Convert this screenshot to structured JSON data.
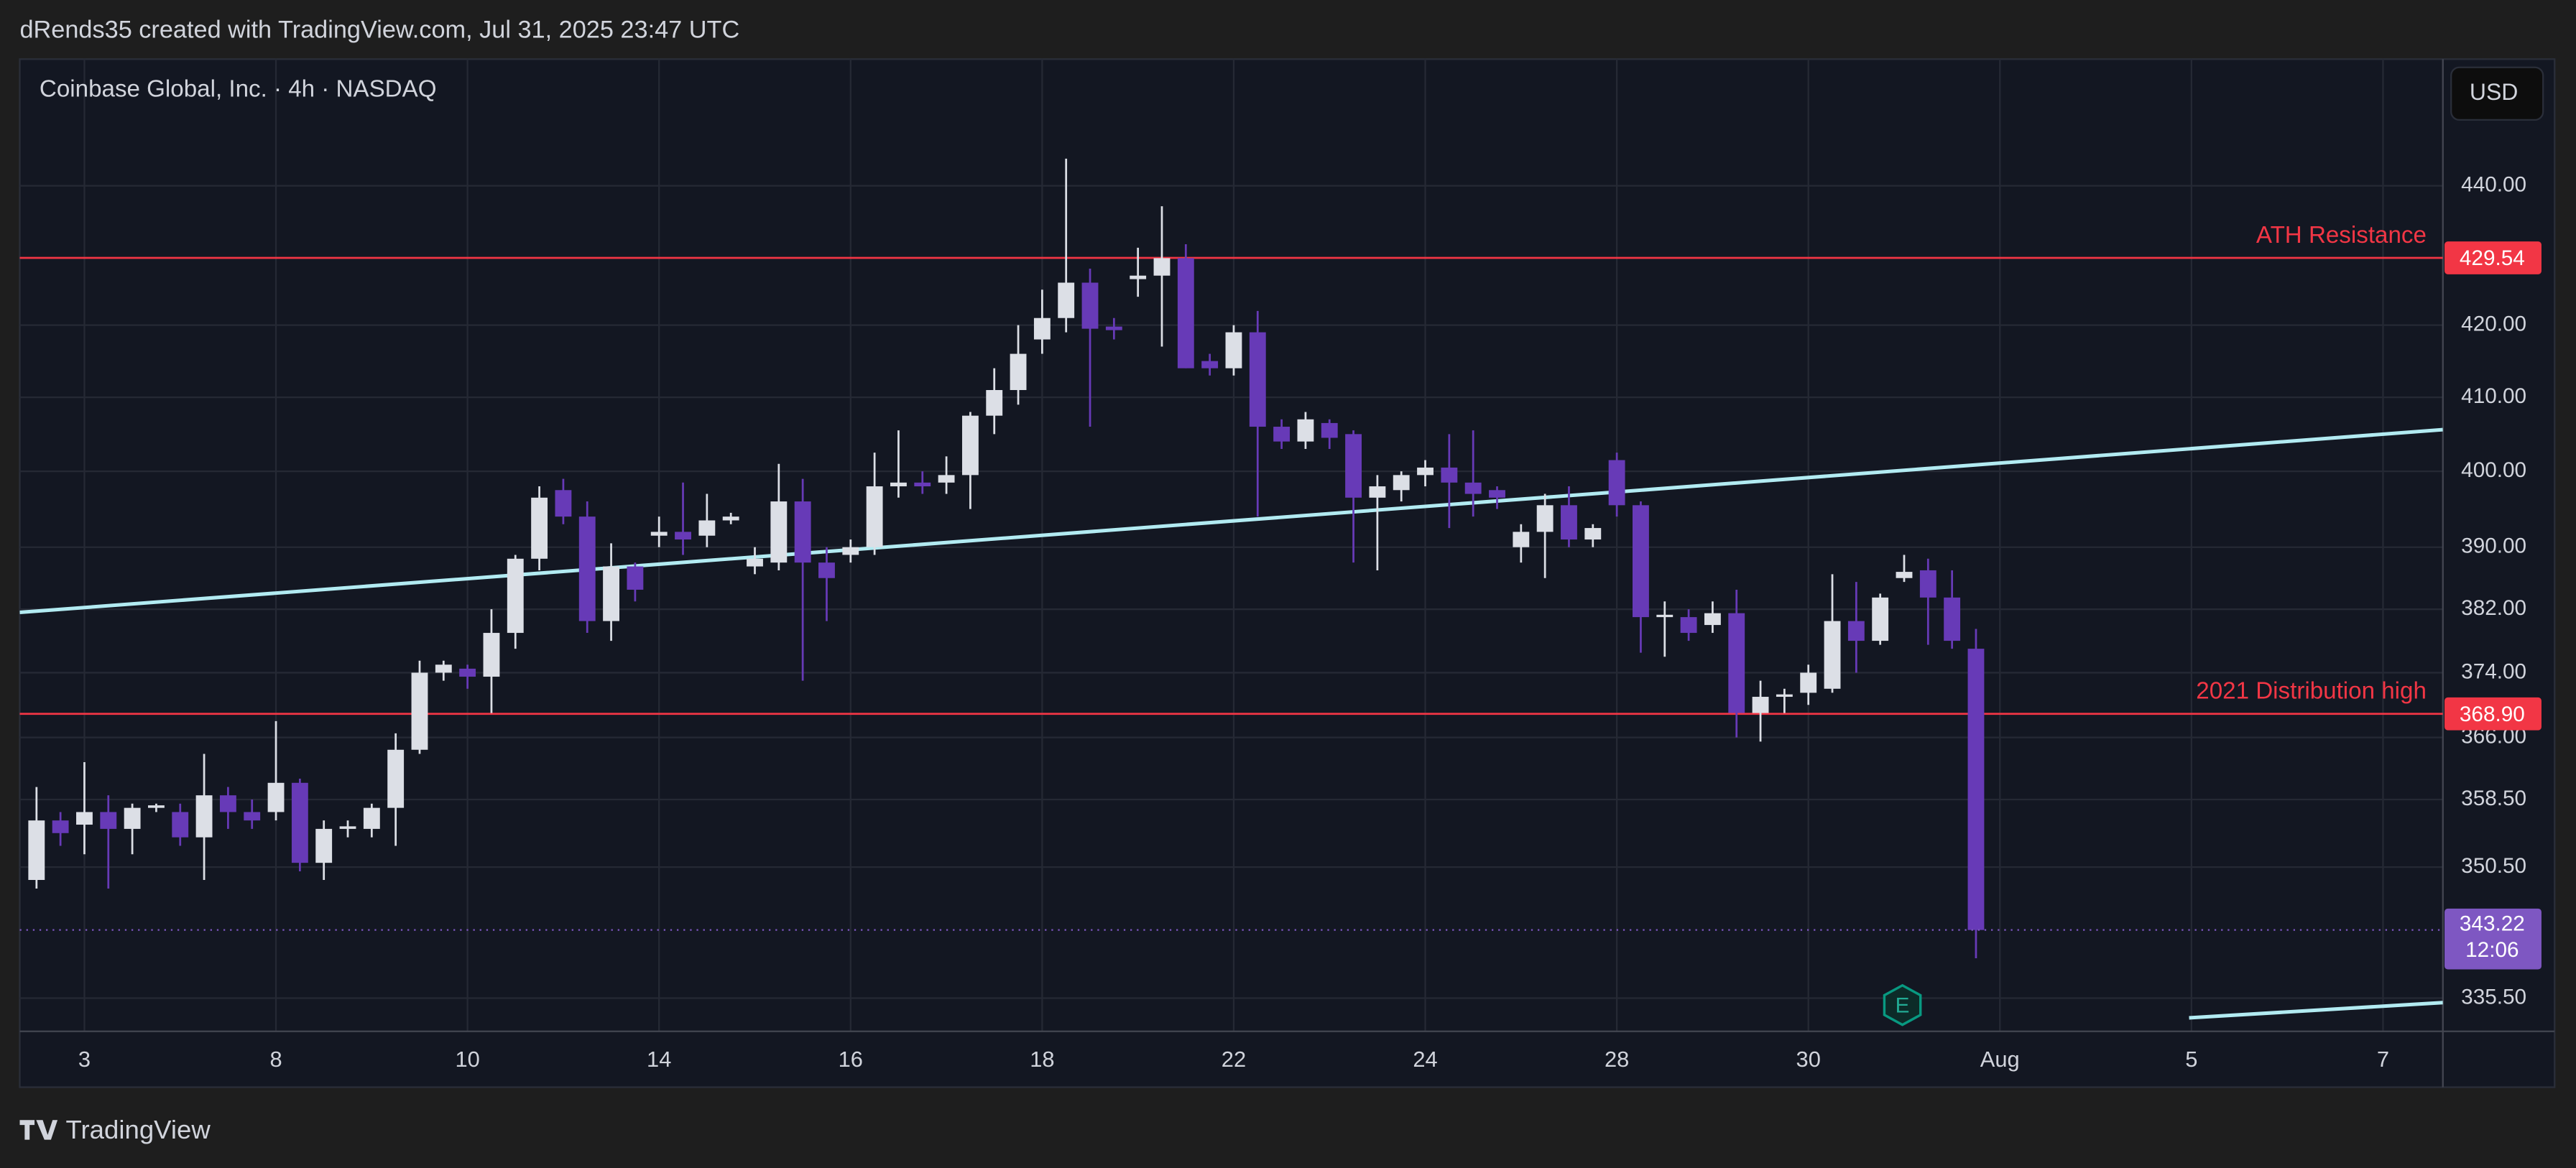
{
  "header": "dRends35 created with TradingView.com, Jul 31, 2025 23:47 UTC",
  "footer": "TradingView",
  "chart_data": {
    "type": "candlestick",
    "title": "Coinbase Global, Inc. · 4h · NASDAQ",
    "currency": "USD",
    "log_scale": true,
    "grid": true,
    "up_color": "#dcdfe6",
    "down_color": "#673ab7",
    "open": [
      349,
      356,
      355.5,
      357,
      355,
      357.5,
      357,
      354,
      359,
      357,
      357,
      360.5,
      351,
      355,
      355,
      357.5,
      364.5,
      374,
      374.5,
      373.5,
      379,
      388.5,
      397.5,
      394,
      380.5,
      387.5,
      391.5,
      392,
      391.5,
      393.5,
      387.5,
      388,
      396,
      388,
      389,
      390,
      398,
      398.5,
      398.5,
      399.5,
      407.5,
      411,
      418,
      421,
      426,
      419.8,
      426.5,
      427,
      429.5,
      415,
      414,
      419,
      406,
      404,
      406.5,
      405,
      396.5,
      397.5,
      399.5,
      400.5,
      398.5,
      397.5,
      390,
      392,
      395.5,
      391,
      401.5,
      395.5,
      381,
      381,
      380,
      381.5,
      369,
      371,
      371.5,
      372,
      380.5,
      378,
      386,
      387,
      383.5,
      377
    ],
    "high": [
      360,
      357,
      363,
      359,
      358,
      358,
      358,
      364,
      360,
      358.5,
      368,
      361,
      356,
      356,
      358,
      366.5,
      375.5,
      375.5,
      375,
      382,
      389,
      398,
      399,
      396,
      390.5,
      388,
      394,
      398.5,
      397,
      394.5,
      390,
      401,
      399,
      390,
      391,
      402.5,
      405.5,
      400,
      402,
      408,
      414,
      420,
      425,
      444,
      428,
      421,
      431,
      437,
      431.5,
      416,
      420,
      422,
      407,
      408,
      407,
      405.5,
      399.5,
      400,
      401.5,
      405,
      405.5,
      398,
      393,
      397,
      398,
      393,
      402.5,
      396,
      383,
      382,
      383,
      384.5,
      373,
      372,
      375,
      386.5,
      385.5,
      384,
      389,
      388.5,
      387,
      379.5
    ],
    "low": [
      348,
      353,
      352,
      348,
      352,
      357,
      353,
      349,
      355,
      355,
      356,
      350,
      349,
      354,
      354,
      353,
      364,
      373,
      372,
      369,
      377,
      387,
      393,
      379,
      378,
      383,
      390,
      389,
      390,
      393,
      386.5,
      387,
      373,
      380.5,
      388,
      389,
      396.5,
      397,
      397,
      395,
      405,
      409,
      416,
      419,
      406,
      418,
      424,
      417,
      414,
      413,
      413,
      394,
      403,
      403,
      403,
      388,
      387,
      396,
      398,
      392.5,
      394,
      395,
      388,
      386,
      390,
      390,
      394,
      376.5,
      376,
      378,
      379,
      366,
      365.5,
      369,
      370,
      371.5,
      374,
      377.5,
      385.5,
      377.5,
      377,
      340
    ],
    "close": [
      356,
      354.5,
      357,
      355,
      357.5,
      357.8,
      354,
      359,
      357,
      356,
      360.5,
      351,
      355,
      355.3,
      357.5,
      364.5,
      374,
      375,
      373.5,
      379,
      388.5,
      396.5,
      394,
      380.5,
      387.5,
      384.5,
      392,
      391,
      393.5,
      394,
      388.5,
      396,
      388,
      386,
      390,
      398,
      398.5,
      398,
      399.5,
      407.5,
      411,
      416,
      421,
      426,
      419.5,
      419.3,
      427,
      429.5,
      414,
      414,
      419,
      406,
      404,
      407,
      404.5,
      396.5,
      398,
      399.5,
      400.5,
      398.5,
      397,
      396.5,
      392,
      395.5,
      391,
      392.5,
      395.5,
      381,
      381.3,
      379,
      381.5,
      369,
      371,
      371.3,
      374,
      380.5,
      378,
      383.5,
      386.8,
      383.5,
      378,
      343.22
    ],
    "ylim": [
      331.8,
      459
    ],
    "yticks": [
      {
        "value": 440,
        "label": "440.00"
      },
      {
        "value": 420,
        "label": "420.00"
      },
      {
        "value": 410,
        "label": "410.00"
      },
      {
        "value": 400,
        "label": "400.00"
      },
      {
        "value": 390,
        "label": "390.00"
      },
      {
        "value": 382,
        "label": "382.00"
      },
      {
        "value": 374,
        "label": "374.00"
      },
      {
        "value": 366,
        "label": "366.00"
      },
      {
        "value": 358.5,
        "label": "358.50"
      },
      {
        "value": 350.5,
        "label": "350.50"
      },
      {
        "value": 335.5,
        "label": "335.50"
      }
    ],
    "xlim": [
      -0.7,
      100.5
    ],
    "xticks": [
      {
        "value": 2,
        "label": "3"
      },
      {
        "value": 10,
        "label": "8"
      },
      {
        "value": 18,
        "label": "10"
      },
      {
        "value": 26,
        "label": "14"
      },
      {
        "value": 34,
        "label": "16"
      },
      {
        "value": 42,
        "label": "18"
      },
      {
        "value": 50,
        "label": "22"
      },
      {
        "value": 58,
        "label": "24"
      },
      {
        "value": 66,
        "label": "28"
      },
      {
        "value": 74,
        "label": "30"
      },
      {
        "value": 82,
        "label": "Aug"
      },
      {
        "value": 90,
        "label": "5"
      },
      {
        "value": 98,
        "label": "7"
      }
    ],
    "levels": [
      {
        "name": "ATH Resistance",
        "value": 429.54,
        "label": "429.54",
        "color": "#f23645"
      },
      {
        "name": "2021 Distribution high",
        "value": 368.9,
        "label": "368.90",
        "color": "#f23645"
      }
    ],
    "trend_lines": [
      {
        "x": [
          -0.7,
          100.5
        ],
        "y": [
          381.6,
          405.6
        ],
        "color": "#b2ebf2"
      },
      {
        "x": [
          89.9,
          100.5
        ],
        "y": [
          333.3,
          335
        ],
        "color": "#b2ebf2"
      }
    ],
    "last_price": {
      "value": 343.22,
      "label": "343.22",
      "countdown": "12:06",
      "color": "#7e57c2"
    },
    "earnings_marker": "E"
  }
}
